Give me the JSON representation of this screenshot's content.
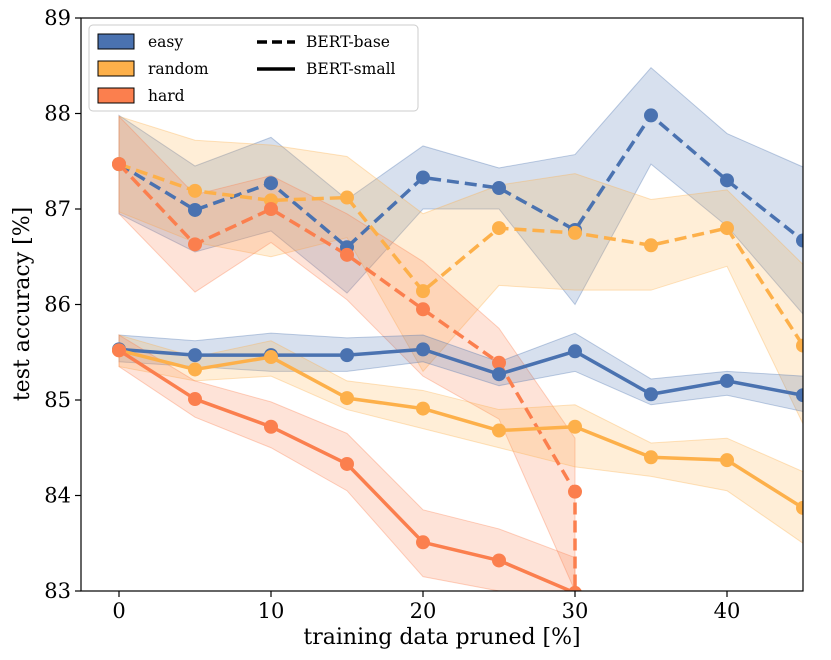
{
  "chart_data": {
    "type": "line",
    "title": "",
    "xlabel": "training data pruned [%]",
    "ylabel": "test accuracy [%]",
    "xlim": [
      -2.5,
      45
    ],
    "ylim": [
      83,
      89
    ],
    "xticks": [
      0,
      10,
      20,
      30,
      40
    ],
    "yticks": [
      83,
      84,
      85,
      86,
      87,
      88,
      89
    ],
    "grid": false,
    "legend": {
      "location": "top-left",
      "entries": [
        {
          "label": "easy",
          "kind": "patch",
          "color": "#4a72b0"
        },
        {
          "label": "random",
          "kind": "patch",
          "color": "#fdb04a"
        },
        {
          "label": "hard",
          "kind": "patch",
          "color": "#fb7f4e"
        },
        {
          "label": "BERT-base",
          "kind": "line",
          "dash": "dashed"
        },
        {
          "label": "BERT-small",
          "kind": "line",
          "dash": "solid"
        }
      ]
    },
    "series": [
      {
        "name": "easy BERT-base",
        "group": "easy",
        "model": "BERT-base",
        "color": "#4a72b0",
        "dash": "dashed",
        "x": [
          0,
          5,
          10,
          15,
          20,
          25,
          30,
          35,
          40,
          45
        ],
        "y": [
          87.47,
          86.99,
          87.27,
          86.6,
          87.33,
          87.22,
          86.78,
          87.98,
          87.3,
          86.67
        ],
        "lower": [
          86.95,
          86.55,
          86.77,
          86.12,
          87.0,
          87.0,
          86.0,
          87.47,
          86.82,
          85.9
        ],
        "upper": [
          87.98,
          87.45,
          87.75,
          87.1,
          87.66,
          87.43,
          87.57,
          88.48,
          87.79,
          87.44
        ]
      },
      {
        "name": "random BERT-base",
        "group": "random",
        "model": "BERT-base",
        "color": "#fdb04a",
        "dash": "dashed",
        "x": [
          0,
          5,
          10,
          15,
          20,
          25,
          30,
          35,
          40,
          45
        ],
        "y": [
          87.47,
          87.19,
          87.09,
          87.12,
          86.14,
          86.8,
          86.75,
          86.62,
          86.8,
          85.57
        ],
        "lower": [
          86.97,
          86.65,
          86.5,
          86.7,
          85.3,
          86.2,
          86.15,
          86.15,
          86.4,
          84.75
        ],
        "upper": [
          87.97,
          87.72,
          87.67,
          87.55,
          86.95,
          87.25,
          87.37,
          87.1,
          87.2,
          86.42
        ]
      },
      {
        "name": "hard BERT-base",
        "group": "hard",
        "model": "BERT-base",
        "color": "#fb7f4e",
        "dash": "dashed",
        "x": [
          0,
          5,
          10,
          15,
          20,
          25,
          30,
          30
        ],
        "y": [
          87.47,
          86.63,
          87.0,
          86.52,
          85.95,
          85.39,
          84.04,
          83.0
        ],
        "lower": [
          86.95,
          86.13,
          86.65,
          86.05,
          85.25,
          84.8,
          83.0,
          83.0
        ],
        "upper": [
          87.97,
          87.15,
          87.35,
          86.95,
          86.45,
          85.75,
          84.6,
          84.6
        ]
      },
      {
        "name": "easy BERT-small",
        "group": "easy",
        "model": "BERT-small",
        "color": "#4a72b0",
        "dash": "solid",
        "x": [
          0,
          5,
          10,
          15,
          20,
          25,
          30,
          35,
          40,
          45
        ],
        "y": [
          85.53,
          85.47,
          85.47,
          85.47,
          85.53,
          85.27,
          85.51,
          85.06,
          85.2,
          85.05
        ],
        "lower": [
          85.4,
          85.35,
          85.3,
          85.3,
          85.4,
          85.15,
          85.3,
          84.95,
          85.05,
          84.88
        ],
        "upper": [
          85.68,
          85.62,
          85.7,
          85.65,
          85.68,
          85.4,
          85.7,
          85.22,
          85.3,
          85.25
        ]
      },
      {
        "name": "random BERT-small",
        "group": "random",
        "model": "BERT-small",
        "color": "#fdb04a",
        "dash": "solid",
        "x": [
          0,
          5,
          10,
          15,
          20,
          25,
          30,
          35,
          40,
          45
        ],
        "y": [
          85.52,
          85.32,
          85.45,
          85.02,
          84.91,
          84.68,
          84.72,
          84.4,
          84.37,
          83.87
        ],
        "lower": [
          85.35,
          85.2,
          85.25,
          84.9,
          84.7,
          84.5,
          84.3,
          84.2,
          84.05,
          83.5
        ],
        "upper": [
          85.68,
          85.45,
          85.62,
          85.2,
          85.1,
          84.9,
          84.95,
          84.55,
          84.6,
          84.25
        ]
      },
      {
        "name": "hard BERT-small",
        "group": "hard",
        "model": "BERT-small",
        "color": "#fb7f4e",
        "dash": "solid",
        "x": [
          0,
          5,
          10,
          15,
          20,
          25,
          30
        ],
        "y": [
          85.52,
          85.01,
          84.72,
          84.33,
          83.51,
          83.32,
          82.98
        ],
        "lower": [
          85.35,
          84.82,
          84.5,
          84.05,
          83.15,
          83.0,
          82.6
        ],
        "upper": [
          85.68,
          85.2,
          84.98,
          84.65,
          83.85,
          83.65,
          83.35
        ]
      }
    ]
  }
}
